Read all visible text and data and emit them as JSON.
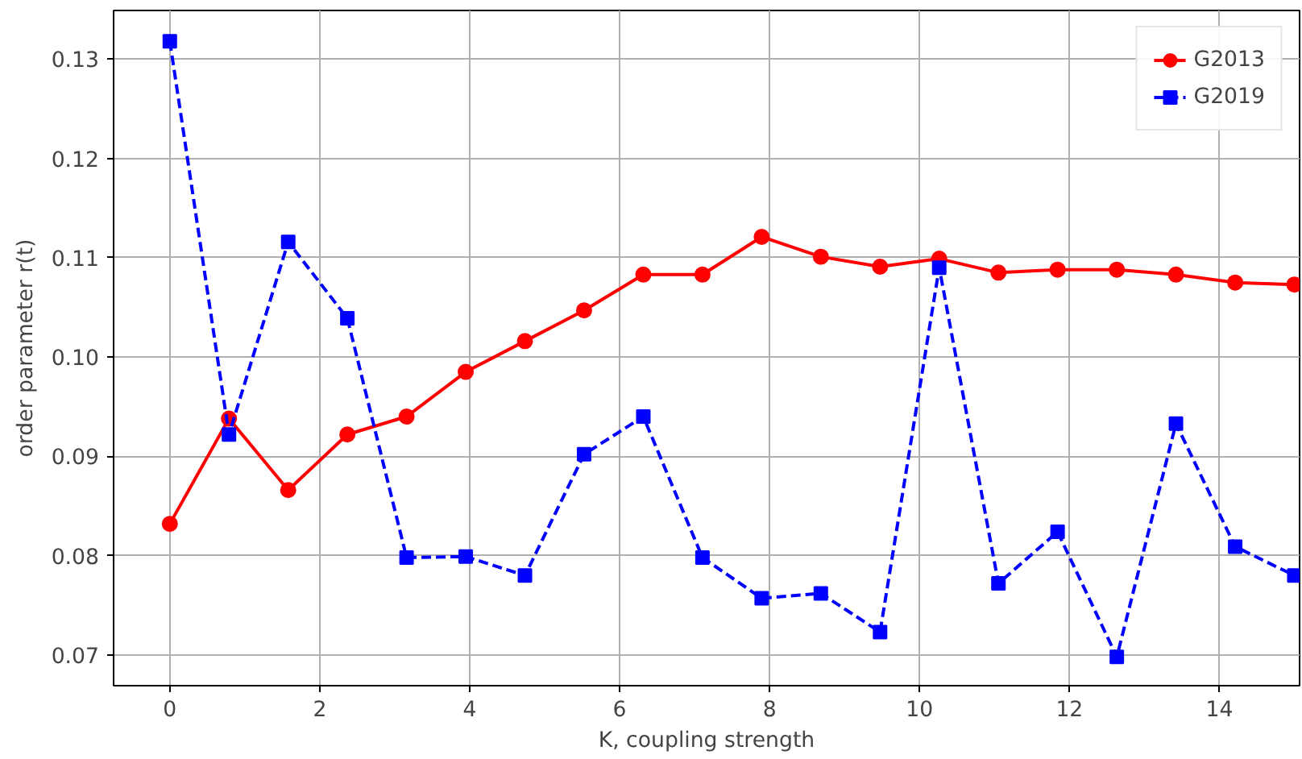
{
  "chart_data": {
    "type": "line",
    "xlabel": "K, coupling strength",
    "ylabel": "order parameter r(t)",
    "x": [
      0,
      0.789,
      1.579,
      2.368,
      3.158,
      3.947,
      4.737,
      5.526,
      6.316,
      7.105,
      7.895,
      8.684,
      9.474,
      10.263,
      11.053,
      11.842,
      12.632,
      13.421,
      14.211,
      15
    ],
    "series": [
      {
        "name": "G2013",
        "color": "#ff0000",
        "marker": "circle",
        "line_style": "solid",
        "values": [
          0.0832,
          0.0938,
          0.0866,
          0.0922,
          0.094,
          0.0985,
          0.1016,
          0.1047,
          0.1083,
          0.1083,
          0.1121,
          0.1101,
          0.1091,
          0.1099,
          0.1085,
          0.1088,
          0.1088,
          0.1083,
          0.1075,
          0.1073
        ]
      },
      {
        "name": "G2019",
        "color": "#0000ff",
        "marker": "square",
        "line_style": "dashed",
        "values": [
          0.1318,
          0.0922,
          0.1116,
          0.1039,
          0.0798,
          0.0799,
          0.078,
          0.0902,
          0.094,
          0.0798,
          0.0757,
          0.0762,
          0.0723,
          0.109,
          0.0772,
          0.0824,
          0.0698,
          0.0933,
          0.0809,
          0.078
        ]
      }
    ],
    "xlim": [
      -0.75,
      15.07
    ],
    "ylim": [
      0.0669,
      0.1349
    ],
    "xticks": [
      0,
      2,
      4,
      6,
      8,
      10,
      12,
      14
    ],
    "yticks": [
      {
        "value": 0.07,
        "label": "0.07"
      },
      {
        "value": 0.08,
        "label": "0.08"
      },
      {
        "value": 0.09,
        "label": "0.09"
      },
      {
        "value": 0.1,
        "label": "0.10"
      },
      {
        "value": 0.11,
        "label": "0.11"
      },
      {
        "value": 0.12,
        "label": "0.12"
      },
      {
        "value": 0.13,
        "label": "0.13"
      }
    ],
    "grid": true,
    "legend": "top right"
  }
}
